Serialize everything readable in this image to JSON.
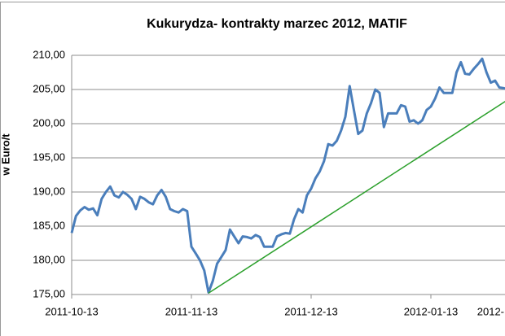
{
  "chart_data": {
    "type": "line",
    "title": "Kukurydza- kontrakty marzec 2012, MATIF",
    "y_label": "w Euro/t",
    "categories": [
      "2011-10-13",
      null,
      null,
      null,
      null,
      null,
      null,
      null,
      null,
      null,
      null,
      null,
      null,
      null,
      null,
      null,
      null,
      null,
      null,
      null,
      null,
      null,
      null,
      null,
      null,
      null,
      null,
      null,
      "2011-11-13",
      null,
      null,
      null,
      null,
      null,
      null,
      null,
      null,
      null,
      null,
      null,
      null,
      null,
      null,
      null,
      null,
      null,
      null,
      null,
      null,
      null,
      null,
      null,
      null,
      null,
      null,
      null,
      "2011-12-13",
      null,
      null,
      null,
      null,
      null,
      null,
      null,
      null,
      null,
      null,
      null,
      null,
      null,
      null,
      null,
      null,
      null,
      null,
      null,
      null,
      null,
      null,
      null,
      null,
      null,
      null,
      null,
      "2012-01-13",
      null,
      null,
      null,
      null,
      null,
      null,
      null,
      null,
      null,
      null,
      null,
      null,
      null,
      null,
      null,
      null,
      null,
      "2012-"
    ],
    "series": [
      {
        "color": "#4a7ebb",
        "values": [
          184.0,
          186.5,
          187.3,
          187.8,
          187.4,
          187.6,
          186.6,
          189.0,
          190.0,
          190.8,
          189.5,
          189.2,
          190.0,
          189.6,
          189.0,
          187.5,
          189.3,
          189.0,
          188.5,
          188.2,
          189.5,
          190.3,
          189.3,
          187.5,
          187.2,
          187.0,
          187.5,
          187.2,
          182.0,
          181.0,
          180.0,
          178.5,
          175.3,
          177.0,
          179.5,
          180.5,
          181.5,
          184.5,
          183.5,
          182.5,
          183.5,
          183.4,
          183.2,
          183.7,
          183.4,
          182.0,
          182.0,
          182.0,
          183.5,
          183.8,
          184.0,
          183.9,
          186.0,
          187.5,
          187.0,
          189.5,
          190.5,
          192.0,
          193.0,
          194.5,
          197.0,
          196.8,
          197.5,
          199.0,
          201.0,
          205.5,
          202.0,
          198.5,
          199.0,
          201.5,
          203.0,
          205.0,
          204.5,
          199.5,
          201.5,
          201.5,
          201.5,
          202.7,
          202.5,
          200.3,
          200.5,
          200.0,
          200.5,
          202.0,
          202.5,
          203.7,
          205.3,
          204.5,
          204.5,
          204.5,
          207.5,
          209.0,
          207.3,
          207.2,
          208.0,
          208.7,
          209.5,
          207.5,
          206.0,
          206.3,
          205.3,
          205.2,
          205.0
        ]
      },
      {
        "color": "#2ca02c",
        "connect_nulls": true,
        "values": [
          null,
          null,
          null,
          null,
          null,
          null,
          null,
          null,
          null,
          null,
          null,
          null,
          null,
          null,
          null,
          null,
          null,
          null,
          null,
          null,
          null,
          null,
          null,
          null,
          null,
          null,
          null,
          null,
          null,
          null,
          null,
          null,
          175.2,
          null,
          null,
          null,
          null,
          null,
          null,
          null,
          null,
          null,
          null,
          null,
          null,
          null,
          null,
          null,
          null,
          null,
          null,
          null,
          null,
          null,
          null,
          null,
          null,
          null,
          null,
          null,
          null,
          null,
          null,
          null,
          null,
          null,
          null,
          null,
          null,
          null,
          null,
          null,
          null,
          null,
          null,
          null,
          null,
          null,
          null,
          null,
          null,
          null,
          null,
          null,
          null,
          null,
          null,
          null,
          null,
          null,
          null,
          null,
          null,
          null,
          null,
          null,
          null,
          null,
          null,
          null,
          null,
          null,
          203.5
        ]
      }
    ],
    "ylim": [
      175,
      210
    ],
    "yticks": [
      {
        "value": 175,
        "label": "175,00"
      },
      {
        "value": 180,
        "label": "180,00"
      },
      {
        "value": 185,
        "label": "185,00"
      },
      {
        "value": 190,
        "label": "190,00"
      },
      {
        "value": 195,
        "label": "195,00"
      },
      {
        "value": 200,
        "label": "200,00"
      },
      {
        "value": 205,
        "label": "205,00"
      },
      {
        "value": 210,
        "label": "210,00"
      }
    ],
    "grid": true
  }
}
